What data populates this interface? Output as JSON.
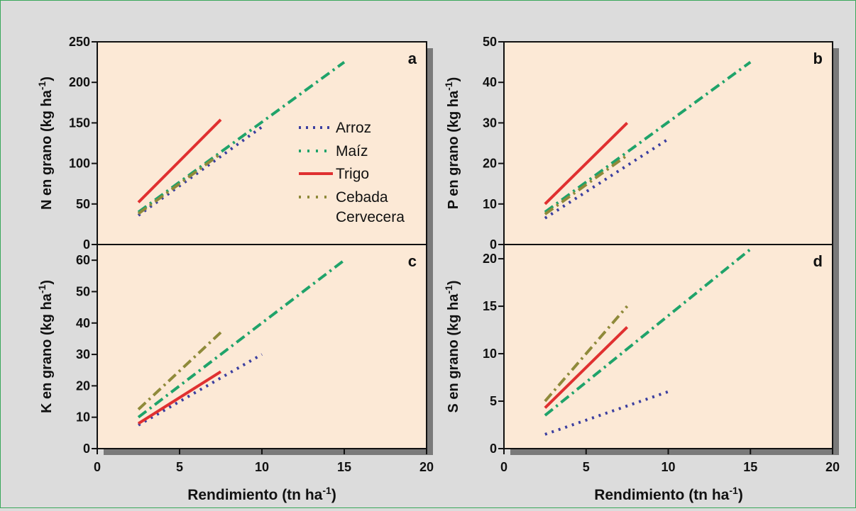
{
  "figure": {
    "xlabel_main": "Rendimiento (tn ha",
    "xlabel_sup": "-1",
    "xlabel_close": ")"
  },
  "legend": {
    "entries": [
      "Arroz",
      "Maíz",
      "Trigo",
      "Cebada",
      "Cervecera"
    ]
  },
  "series_styles": {
    "Arroz": {
      "color": "#3b3fa0",
      "dash": "3,7"
    },
    "Maíz": {
      "color": "#1fa36a",
      "dash": "14,6,3,6"
    },
    "Trigo": {
      "color": "#e03030",
      "dash": ""
    },
    "Cebada Cervecera": {
      "color": "#8f8a3a",
      "dash": "14,6,3,6"
    }
  },
  "chart_data": [
    {
      "type": "line",
      "panel_label": "a",
      "ylabel": "N en grano (kg ha",
      "ylabel_sup": "-1",
      "ylabel_close": ")",
      "xlim": [
        0,
        20
      ],
      "ylim": [
        0,
        250
      ],
      "xticks": [
        0,
        5,
        10,
        15,
        20
      ],
      "yticks": [
        0,
        50,
        100,
        150,
        200,
        250
      ],
      "series": [
        {
          "name": "Arroz",
          "x": [
            2.5,
            10
          ],
          "y": [
            36,
            145
          ]
        },
        {
          "name": "Maíz",
          "x": [
            2.5,
            15
          ],
          "y": [
            40,
            225
          ]
        },
        {
          "name": "Trigo",
          "x": [
            2.5,
            7.5
          ],
          "y": [
            52,
            154
          ]
        },
        {
          "name": "Cebada Cervecera",
          "x": [
            2.5,
            7.5
          ],
          "y": [
            38,
            112
          ]
        }
      ]
    },
    {
      "type": "line",
      "panel_label": "b",
      "ylabel": "P en grano (kg ha",
      "ylabel_sup": "-1",
      "ylabel_close": ")",
      "xlim": [
        0,
        20
      ],
      "ylim": [
        0,
        50
      ],
      "xticks": [
        0,
        5,
        10,
        15,
        20
      ],
      "yticks": [
        0,
        10,
        20,
        30,
        40,
        50
      ],
      "series": [
        {
          "name": "Arroz",
          "x": [
            2.5,
            10
          ],
          "y": [
            6.5,
            26
          ]
        },
        {
          "name": "Maíz",
          "x": [
            2.5,
            15
          ],
          "y": [
            8,
            45
          ]
        },
        {
          "name": "Trigo",
          "x": [
            2.5,
            7.5
          ],
          "y": [
            10,
            30
          ]
        },
        {
          "name": "Cebada Cervecera",
          "x": [
            2.5,
            7.5
          ],
          "y": [
            7.5,
            22
          ]
        }
      ]
    },
    {
      "type": "line",
      "panel_label": "c",
      "ylabel": "K en grano (kg ha",
      "ylabel_sup": "-1",
      "ylabel_close": ")",
      "xlim": [
        0,
        20
      ],
      "ylim": [
        0,
        65
      ],
      "xticks": [
        0,
        5,
        10,
        15,
        20
      ],
      "yticks": [
        0,
        10,
        20,
        30,
        40,
        50,
        60
      ],
      "series": [
        {
          "name": "Arroz",
          "x": [
            2.5,
            10
          ],
          "y": [
            7.5,
            30
          ]
        },
        {
          "name": "Maíz",
          "x": [
            2.5,
            15
          ],
          "y": [
            10,
            60
          ]
        },
        {
          "name": "Trigo",
          "x": [
            2.5,
            7.5
          ],
          "y": [
            8,
            24.5
          ]
        },
        {
          "name": "Cebada Cervecera",
          "x": [
            2.5,
            7.5
          ],
          "y": [
            12.5,
            37
          ]
        }
      ]
    },
    {
      "type": "line",
      "panel_label": "d",
      "ylabel": "S en grano (kg ha",
      "ylabel_sup": "-1",
      "ylabel_close": ")",
      "xlim": [
        0,
        20
      ],
      "ylim": [
        0,
        21.5
      ],
      "xticks": [
        0,
        5,
        10,
        15,
        20
      ],
      "yticks": [
        0,
        5,
        10,
        15,
        20
      ],
      "series": [
        {
          "name": "Arroz",
          "x": [
            2.5,
            10
          ],
          "y": [
            1.5,
            6
          ]
        },
        {
          "name": "Maíz",
          "x": [
            2.5,
            15
          ],
          "y": [
            3.5,
            21
          ]
        },
        {
          "name": "Trigo",
          "x": [
            2.5,
            7.5
          ],
          "y": [
            4.3,
            12.8
          ]
        },
        {
          "name": "Cebada Cervecera",
          "x": [
            2.5,
            7.5
          ],
          "y": [
            5,
            15
          ]
        }
      ]
    }
  ]
}
